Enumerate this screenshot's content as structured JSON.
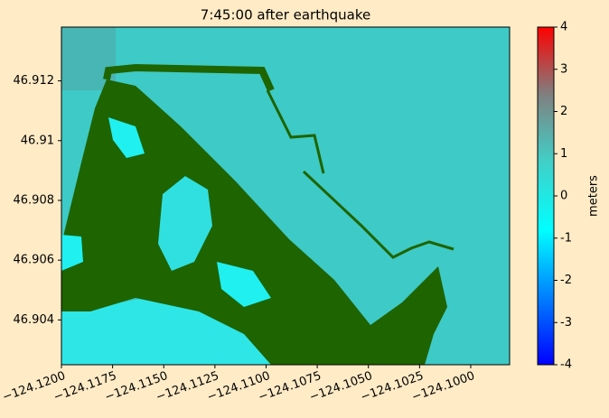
{
  "chart_data": {
    "type": "map",
    "title": "7:45:00 after earthquake",
    "xlim": [
      -124.12,
      -124.0981
    ],
    "xticks": [
      {
        "value": -124.12,
        "label": "−124.1200"
      },
      {
        "value": -124.1175,
        "label": "−124.1175"
      },
      {
        "value": -124.115,
        "label": "−124.1150"
      },
      {
        "value": -124.1125,
        "label": "−124.1125"
      },
      {
        "value": -124.11,
        "label": "−124.1100"
      },
      {
        "value": -124.1075,
        "label": "−124.1075"
      },
      {
        "value": -124.105,
        "label": "−124.1050"
      },
      {
        "value": -124.1025,
        "label": "−124.1025"
      },
      {
        "value": -124.1,
        "label": "−124.1000"
      }
    ],
    "ylim": [
      46.9025,
      46.9138
    ],
    "yticks": [
      46.904,
      46.906,
      46.908,
      46.91,
      46.912
    ],
    "colorbar": {
      "label": "meters",
      "lim": [
        -4,
        4
      ],
      "ticks": [
        -4,
        -3,
        -2,
        -1,
        0,
        1,
        2,
        3,
        4
      ],
      "colors": [
        "#0000ff",
        "#0080ff",
        "#00ffff",
        "#40d0c8",
        "#808080",
        "#ff0000"
      ]
    }
  }
}
